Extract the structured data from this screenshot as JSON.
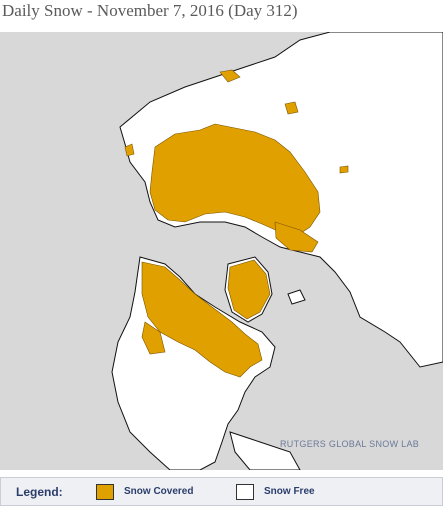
{
  "header": {
    "title": "Daily Snow - November 7, 2016 (Day 312)"
  },
  "map": {
    "watermark": "RUTGERS GLOBAL SNOW LAB"
  },
  "legend": {
    "label": "Legend:",
    "items": [
      {
        "name": "Snow Covered",
        "color": "#e0a000"
      },
      {
        "name": "Snow Free",
        "color": "#ffffff"
      }
    ]
  }
}
